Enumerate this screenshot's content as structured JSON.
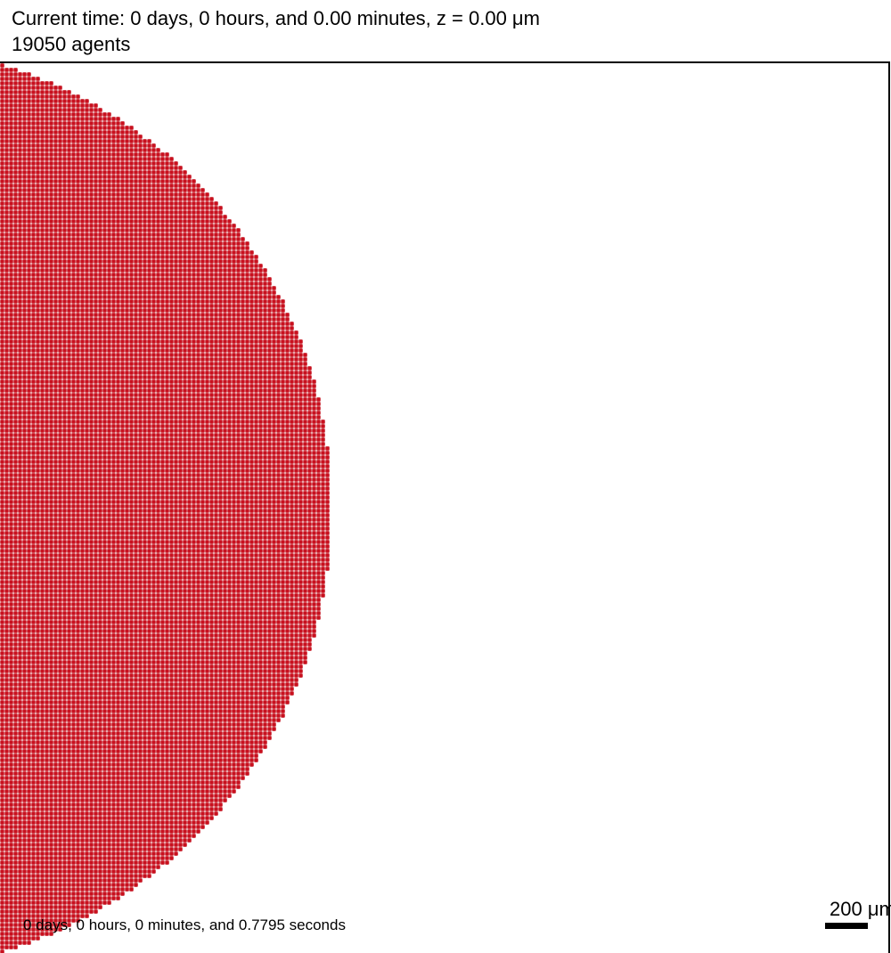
{
  "header": {
    "time_line": "Current time: 0 days, 0 hours, and 0.00 minutes, z = 0.00 μm",
    "agents_line": "19050 agents"
  },
  "footer": {
    "elapsed": "0 days, 0 hours, 0 minutes, and 0.7795 seconds"
  },
  "scale_bar": {
    "label": "200 μm"
  },
  "colors": {
    "agent_fill": "#c8101e",
    "agent_gap": "#f4e6e6",
    "border": "#000000"
  }
}
